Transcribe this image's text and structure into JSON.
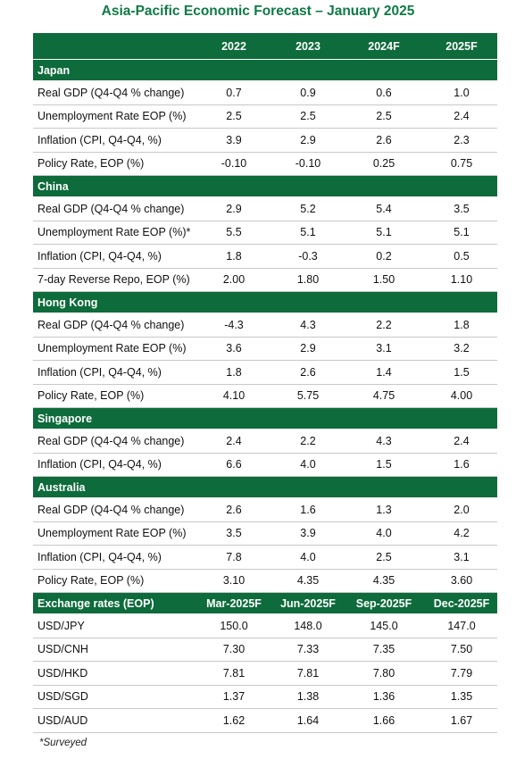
{
  "title": "Asia-Pacific Economic Forecast – January 2025",
  "table": {
    "columns": [
      "2022",
      "2023",
      "2024F",
      "2025F"
    ],
    "sections": [
      {
        "name": "Japan",
        "rows": [
          {
            "label": "Real GDP (Q4-Q4 % change)",
            "values": [
              "0.7",
              "0.9",
              "0.6",
              "1.0"
            ]
          },
          {
            "label": "Unemployment Rate EOP (%)",
            "values": [
              "2.5",
              "2.5",
              "2.5",
              "2.4"
            ]
          },
          {
            "label": "Inflation (CPI, Q4-Q4, %)",
            "values": [
              "3.9",
              "2.9",
              "2.6",
              "2.3"
            ]
          },
          {
            "label": "Policy Rate, EOP (%)",
            "values": [
              "-0.10",
              "-0.10",
              "0.25",
              "0.75"
            ]
          }
        ]
      },
      {
        "name": "China",
        "rows": [
          {
            "label": "Real GDP (Q4-Q4 % change)",
            "values": [
              "2.9",
              "5.2",
              "5.4",
              "3.5"
            ]
          },
          {
            "label": "Unemployment Rate EOP (%)*",
            "values": [
              "5.5",
              "5.1",
              "5.1",
              "5.1"
            ]
          },
          {
            "label": "Inflation (CPI, Q4-Q4, %)",
            "values": [
              "1.8",
              "-0.3",
              "0.2",
              "0.5"
            ]
          },
          {
            "label": "7-day Reverse Repo, EOP (%)",
            "values": [
              "2.00",
              "1.80",
              "1.50",
              "1.10"
            ]
          }
        ]
      },
      {
        "name": "Hong Kong",
        "rows": [
          {
            "label": "Real GDP (Q4-Q4 % change)",
            "values": [
              "-4.3",
              "4.3",
              "2.2",
              "1.8"
            ]
          },
          {
            "label": "Unemployment Rate EOP (%)",
            "values": [
              "3.6",
              "2.9",
              "3.1",
              "3.2"
            ]
          },
          {
            "label": "Inflation (CPI, Q4-Q4, %)",
            "values": [
              "1.8",
              "2.6",
              "1.4",
              "1.5"
            ]
          },
          {
            "label": "Policy Rate, EOP (%)",
            "values": [
              "4.10",
              "5.75",
              "4.75",
              "4.00"
            ]
          }
        ]
      },
      {
        "name": "Singapore",
        "rows": [
          {
            "label": "Real GDP (Q4-Q4 % change)",
            "values": [
              "2.4",
              "2.2",
              "4.3",
              "2.4"
            ]
          },
          {
            "label": "Inflation (CPI, Q4-Q4, %)",
            "values": [
              "6.6",
              "4.0",
              "1.5",
              "1.6"
            ]
          }
        ]
      },
      {
        "name": "Australia",
        "rows": [
          {
            "label": "Real GDP (Q4-Q4 % change)",
            "values": [
              "2.6",
              "1.6",
              "1.3",
              "2.0"
            ]
          },
          {
            "label": "Unemployment Rate EOP (%)",
            "values": [
              "3.5",
              "3.9",
              "4.0",
              "4.2"
            ]
          },
          {
            "label": "Inflation (CPI, Q4-Q4, %)",
            "values": [
              "7.8",
              "4.0",
              "2.5",
              "3.1"
            ]
          },
          {
            "label": "Policy Rate, EOP (%)",
            "values": [
              "3.10",
              "4.35",
              "4.35",
              "3.60"
            ]
          }
        ]
      },
      {
        "name": "Exchange rates (EOP)",
        "columns": [
          "Mar-2025F",
          "Jun-2025F",
          "Sep-2025F",
          "Dec-2025F"
        ],
        "rows": [
          {
            "label": "USD/JPY",
            "values": [
              "150.0",
              "148.0",
              "145.0",
              "147.0"
            ]
          },
          {
            "label": "USD/CNH",
            "values": [
              "7.30",
              "7.33",
              "7.35",
              "7.50"
            ]
          },
          {
            "label": "USD/HKD",
            "values": [
              "7.81",
              "7.81",
              "7.80",
              "7.79"
            ]
          },
          {
            "label": "USD/SGD",
            "values": [
              "1.37",
              "1.38",
              "1.36",
              "1.35"
            ]
          },
          {
            "label": "USD/AUD",
            "values": [
              "1.62",
              "1.64",
              "1.66",
              "1.67"
            ]
          }
        ]
      }
    ]
  },
  "footnote": "*Surveyed"
}
